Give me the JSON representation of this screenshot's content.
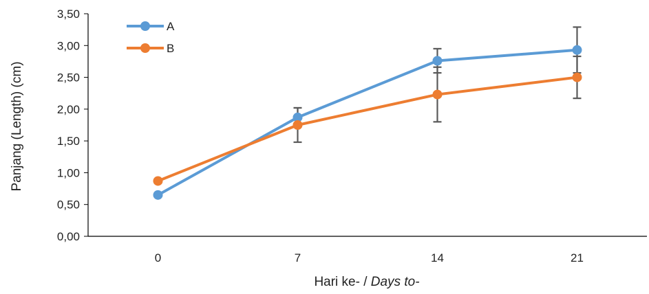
{
  "chart_data": {
    "type": "line",
    "categories": [
      "0",
      "7",
      "14",
      "21"
    ],
    "x": [
      0,
      7,
      14,
      21
    ],
    "ylim": [
      0,
      3.5
    ],
    "yticks": [
      "0,00",
      "0,50",
      "1,00",
      "1,50",
      "2,00",
      "2,50",
      "3,00",
      "3,50"
    ],
    "ylabel": "Panjang (Length) (cm)",
    "xlabel_main": "Hari ke- / ",
    "xlabel_italic": "Days to-",
    "legend_position": "top-left",
    "grid": false,
    "series": [
      {
        "name": "A",
        "color": "#5B9BD5",
        "values": [
          0.65,
          1.87,
          2.76,
          2.93
        ],
        "errors": [
          0.0,
          0.15,
          0.19,
          0.36
        ]
      },
      {
        "name": "B",
        "color": "#ED7D31",
        "values": [
          0.87,
          1.75,
          2.23,
          2.5
        ],
        "errors": [
          0.0,
          0.27,
          0.43,
          0.33
        ]
      }
    ]
  }
}
